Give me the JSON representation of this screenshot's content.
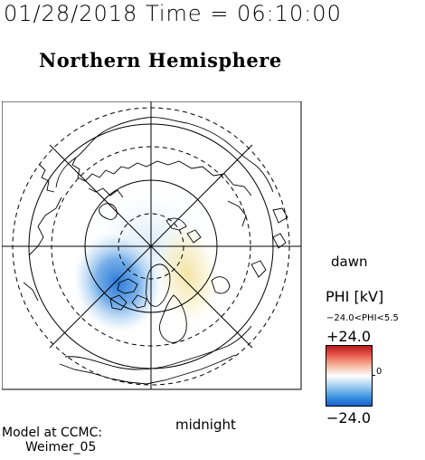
{
  "header": {
    "timestamp": "01/28/2018 Time = 06:10:00",
    "title": "Northern Hemisphere"
  },
  "map": {
    "projection": "polar stereographic (north pole centered)",
    "grid": "latitude circles and meridians every 30 degrees",
    "left_label": "",
    "right_label": "dawn",
    "bottom_label": "midnight",
    "field": "electric potential",
    "negative_cell_color": "#1e6fd6",
    "positive_cell_color": "#f2e6a0"
  },
  "legend": {
    "title": "PHI [kV]",
    "range_text": "−24.0<PHI<5.5",
    "max_label": "+24.0",
    "min_label": "−24.0",
    "mid_label": "0",
    "colors": {
      "max": "#b31b1b",
      "mid": "#ffffff",
      "min": "#1660c9"
    }
  },
  "footer": {
    "model_line1": "Model at CCMC:",
    "model_line2": "Weimer_05"
  }
}
